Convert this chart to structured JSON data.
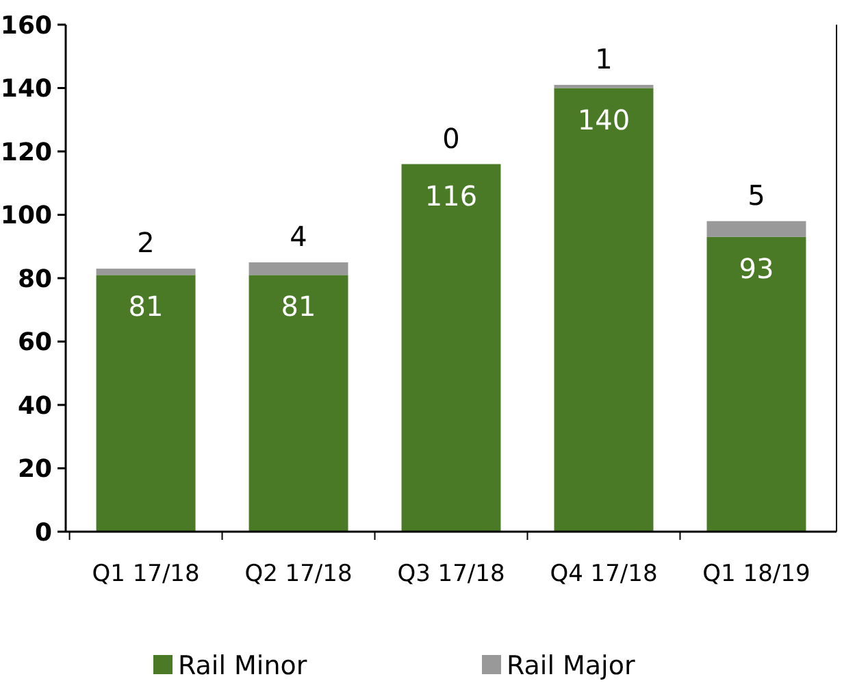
{
  "chart_data": {
    "type": "bar",
    "stacked": true,
    "categories": [
      "Q1 17/18",
      "Q2 17/18",
      "Q3 17/18",
      "Q4 17/18",
      "Q1 18/19"
    ],
    "series": [
      {
        "name": "Rail Minor",
        "color": "#4b7a26",
        "values": [
          81,
          81,
          116,
          140,
          93
        ]
      },
      {
        "name": "Rail Major",
        "color": "#999999",
        "values": [
          2,
          4,
          0,
          1,
          5
        ]
      }
    ],
    "ylim": [
      0,
      160
    ],
    "yticks": [
      0,
      20,
      40,
      60,
      80,
      100,
      120,
      140,
      160
    ],
    "data_labels": true,
    "legend": "bottom",
    "grid": false
  }
}
